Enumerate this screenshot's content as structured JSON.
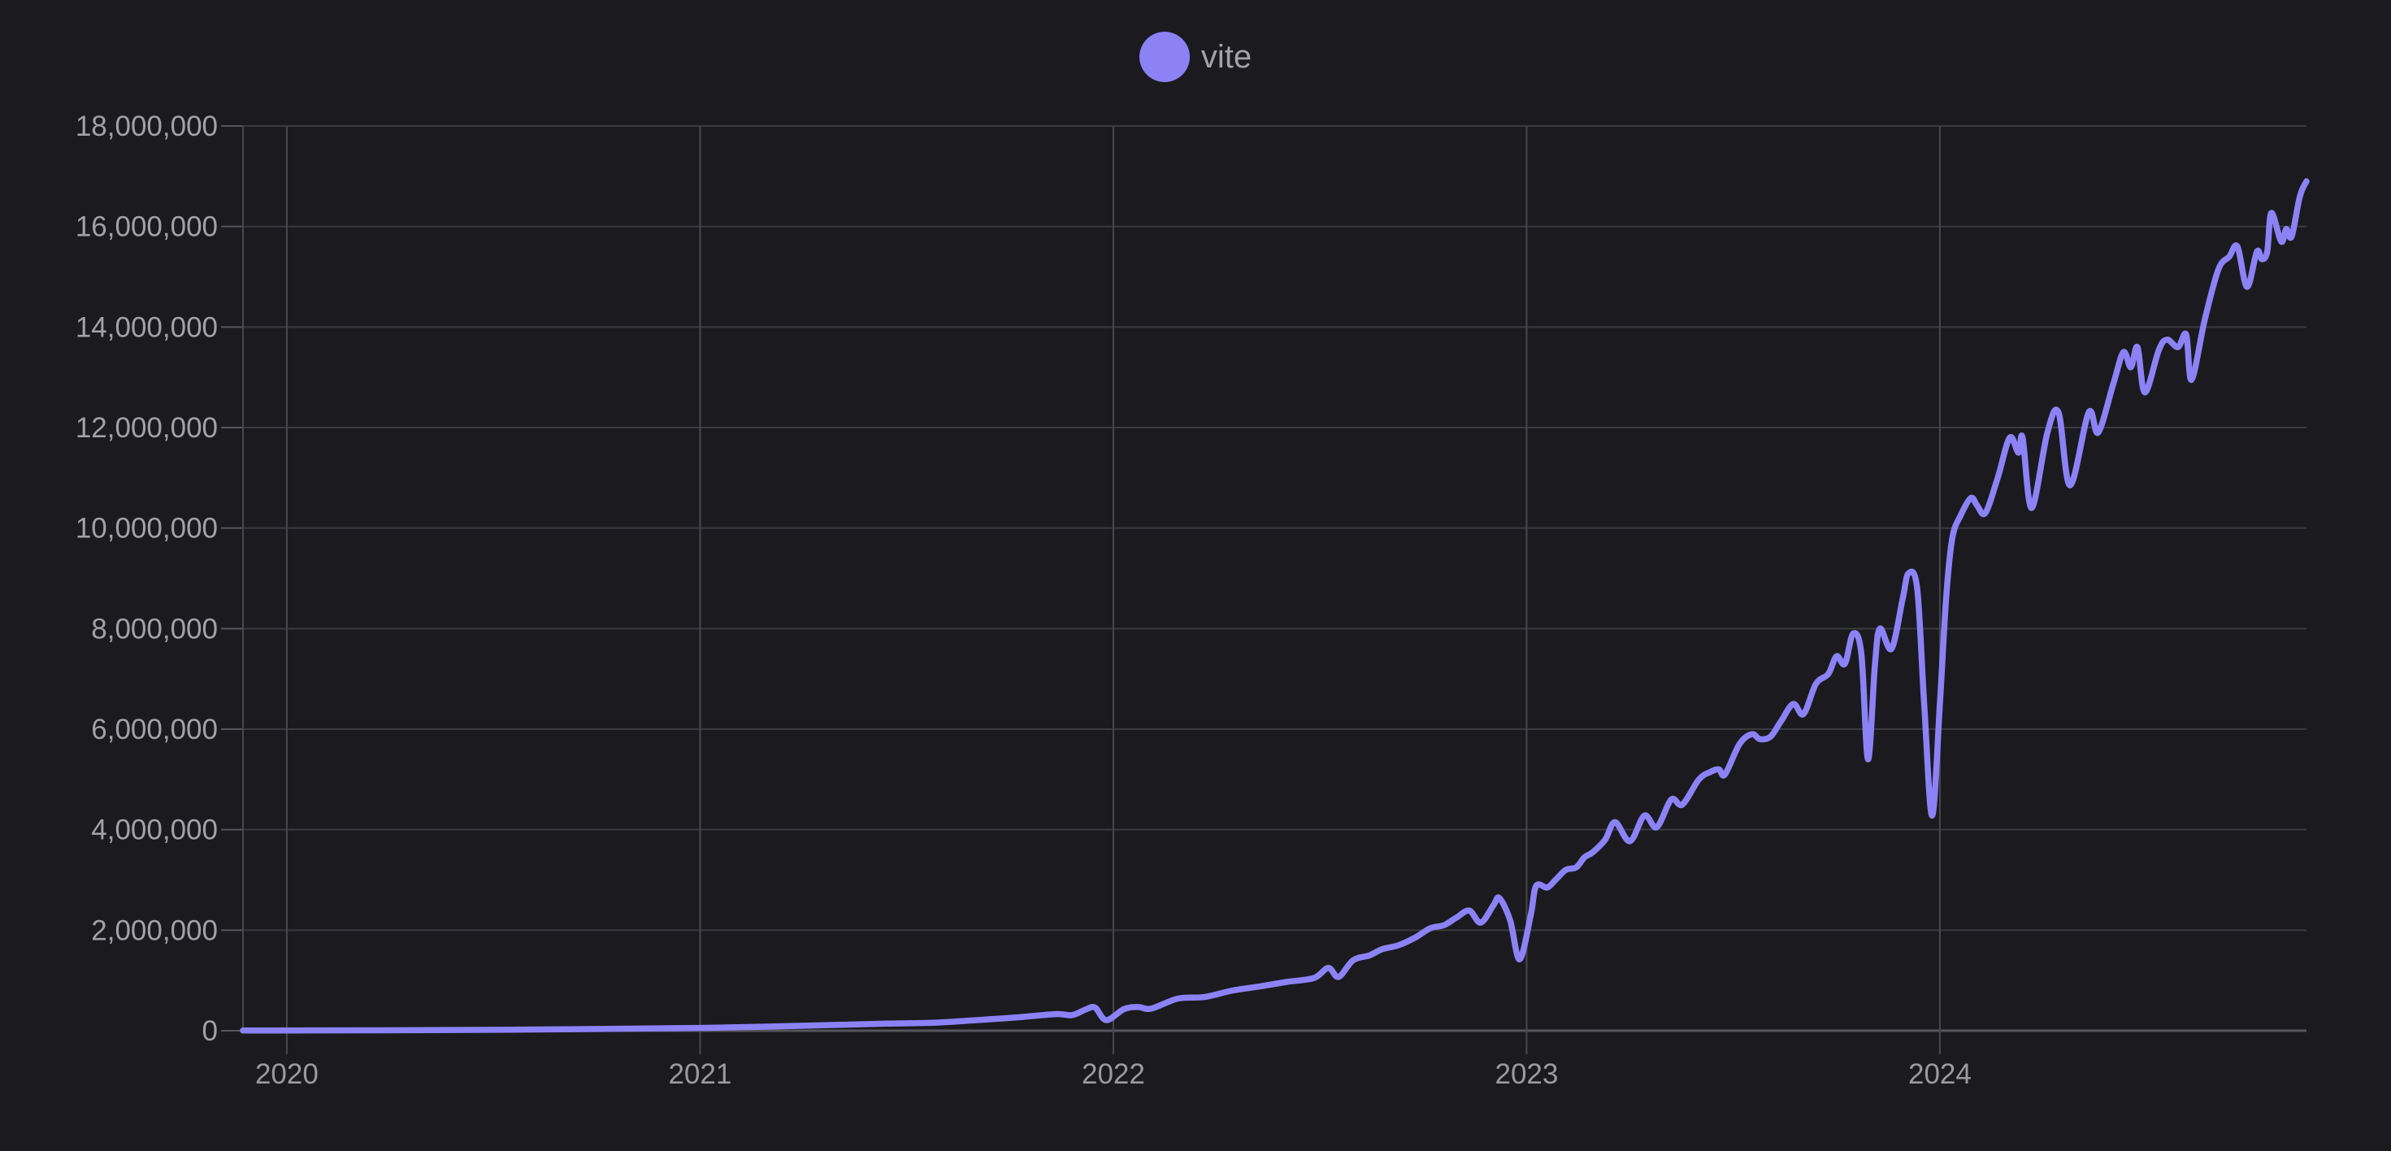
{
  "legend": {
    "items": [
      {
        "label": "vite",
        "color": "#8c82f6"
      }
    ]
  },
  "colors": {
    "background": "#1b1a1f",
    "series_line": "#8c82f6",
    "grid_minor": "#3a3b40",
    "grid_vertical": "#47484d",
    "axis_baseline": "#55565c",
    "tick_mark": "#55565c",
    "y_tick_label": "#a1a2a7",
    "x_tick_label": "#9a9b9f",
    "legend_label": "#a2a3a8"
  },
  "chart_data": {
    "type": "line",
    "title": "",
    "legend_position": "top-center",
    "grid": true,
    "x_tick_labels": [
      "2020",
      "2021",
      "2022",
      "2023",
      "2024"
    ],
    "x_tick_years": [
      2020,
      2021,
      2022,
      2023,
      2024
    ],
    "x_range_years": [
      2019.894,
      2024.887
    ],
    "y_range": [
      0,
      18000000
    ],
    "y_tick_step": 2000000,
    "y_tick_labels": [
      "0",
      "2,000,000",
      "4,000,000",
      "6,000,000",
      "8,000,000",
      "10,000,000",
      "12,000,000",
      "14,000,000",
      "16,000,000",
      "18,000,000"
    ],
    "series": [
      {
        "name": "vite",
        "color": "#8c82f6",
        "points_year_vs_million_downloads": [
          [
            2019.894,
            0.003
          ],
          [
            2020.1,
            0.006
          ],
          [
            2020.3,
            0.01
          ],
          [
            2020.5,
            0.018
          ],
          [
            2020.7,
            0.03
          ],
          [
            2020.85,
            0.042
          ],
          [
            2021.0,
            0.055
          ],
          [
            2021.15,
            0.08
          ],
          [
            2021.3,
            0.11
          ],
          [
            2021.45,
            0.14
          ],
          [
            2021.57,
            0.16
          ],
          [
            2021.65,
            0.2
          ],
          [
            2021.76,
            0.26
          ],
          [
            2021.86,
            0.33
          ],
          [
            2021.9,
            0.31
          ],
          [
            2021.935,
            0.43
          ],
          [
            2021.956,
            0.46
          ],
          [
            2021.983,
            0.21
          ],
          [
            2022.026,
            0.43
          ],
          [
            2022.06,
            0.47
          ],
          [
            2022.092,
            0.44
          ],
          [
            2022.157,
            0.64
          ],
          [
            2022.22,
            0.67
          ],
          [
            2022.289,
            0.8
          ],
          [
            2022.354,
            0.88
          ],
          [
            2022.419,
            0.97
          ],
          [
            2022.486,
            1.05
          ],
          [
            2022.52,
            1.25
          ],
          [
            2022.545,
            1.07
          ],
          [
            2022.58,
            1.4
          ],
          [
            2022.62,
            1.5
          ],
          [
            2022.65,
            1.62
          ],
          [
            2022.69,
            1.7
          ],
          [
            2022.73,
            1.85
          ],
          [
            2022.767,
            2.04
          ],
          [
            2022.8,
            2.1
          ],
          [
            2022.83,
            2.25
          ],
          [
            2022.861,
            2.39
          ],
          [
            2022.889,
            2.15
          ],
          [
            2022.92,
            2.5
          ],
          [
            2022.934,
            2.64
          ],
          [
            2022.96,
            2.2
          ],
          [
            2022.983,
            1.42
          ],
          [
            2023.01,
            2.3
          ],
          [
            2023.023,
            2.88
          ],
          [
            2023.05,
            2.85
          ],
          [
            2023.07,
            3.0
          ],
          [
            2023.095,
            3.2
          ],
          [
            2023.12,
            3.25
          ],
          [
            2023.14,
            3.45
          ],
          [
            2023.16,
            3.55
          ],
          [
            2023.19,
            3.8
          ],
          [
            2023.214,
            4.15
          ],
          [
            2023.25,
            3.77
          ],
          [
            2023.285,
            4.28
          ],
          [
            2023.315,
            4.05
          ],
          [
            2023.35,
            4.6
          ],
          [
            2023.377,
            4.5
          ],
          [
            2023.417,
            5.0
          ],
          [
            2023.445,
            5.15
          ],
          [
            2023.465,
            5.2
          ],
          [
            2023.48,
            5.1
          ],
          [
            2023.515,
            5.7
          ],
          [
            2023.545,
            5.9
          ],
          [
            2023.565,
            5.8
          ],
          [
            2023.59,
            5.85
          ],
          [
            2023.615,
            6.15
          ],
          [
            2023.645,
            6.5
          ],
          [
            2023.67,
            6.3
          ],
          [
            2023.7,
            6.9
          ],
          [
            2023.73,
            7.1
          ],
          [
            2023.75,
            7.45
          ],
          [
            2023.77,
            7.3
          ],
          [
            2023.79,
            7.9
          ],
          [
            2023.81,
            7.5
          ],
          [
            2023.826,
            5.4
          ],
          [
            2023.843,
            7.3
          ],
          [
            2023.855,
            8.0
          ],
          [
            2023.883,
            7.6
          ],
          [
            2023.91,
            8.6
          ],
          [
            2023.924,
            9.1
          ],
          [
            2023.945,
            8.8
          ],
          [
            2023.962,
            6.5
          ],
          [
            2023.981,
            4.28
          ],
          [
            2024.0,
            6.5
          ],
          [
            2024.015,
            8.6
          ],
          [
            2024.03,
            9.8
          ],
          [
            2024.05,
            10.25
          ],
          [
            2024.075,
            10.6
          ],
          [
            2024.09,
            10.45
          ],
          [
            2024.11,
            10.3
          ],
          [
            2024.14,
            11.0
          ],
          [
            2024.169,
            11.8
          ],
          [
            2024.19,
            11.5
          ],
          [
            2024.2,
            11.8
          ],
          [
            2024.222,
            10.4
          ],
          [
            2024.26,
            11.9
          ],
          [
            2024.287,
            12.3
          ],
          [
            2024.315,
            10.85
          ],
          [
            2024.36,
            12.3
          ],
          [
            2024.383,
            11.9
          ],
          [
            2024.419,
            12.85
          ],
          [
            2024.444,
            13.5
          ],
          [
            2024.462,
            13.2
          ],
          [
            2024.478,
            13.6
          ],
          [
            2024.496,
            12.7
          ],
          [
            2024.53,
            13.55
          ],
          [
            2024.55,
            13.75
          ],
          [
            2024.576,
            13.6
          ],
          [
            2024.596,
            13.85
          ],
          [
            2024.609,
            12.95
          ],
          [
            2024.641,
            14.15
          ],
          [
            2024.674,
            15.15
          ],
          [
            2024.7,
            15.4
          ],
          [
            2024.72,
            15.6
          ],
          [
            2024.743,
            14.8
          ],
          [
            2024.767,
            15.5
          ],
          [
            2024.779,
            15.35
          ],
          [
            2024.792,
            15.5
          ],
          [
            2024.802,
            16.27
          ],
          [
            2024.826,
            15.7
          ],
          [
            2024.838,
            15.95
          ],
          [
            2024.851,
            15.8
          ],
          [
            2024.871,
            16.6
          ],
          [
            2024.887,
            16.9
          ]
        ]
      }
    ]
  }
}
